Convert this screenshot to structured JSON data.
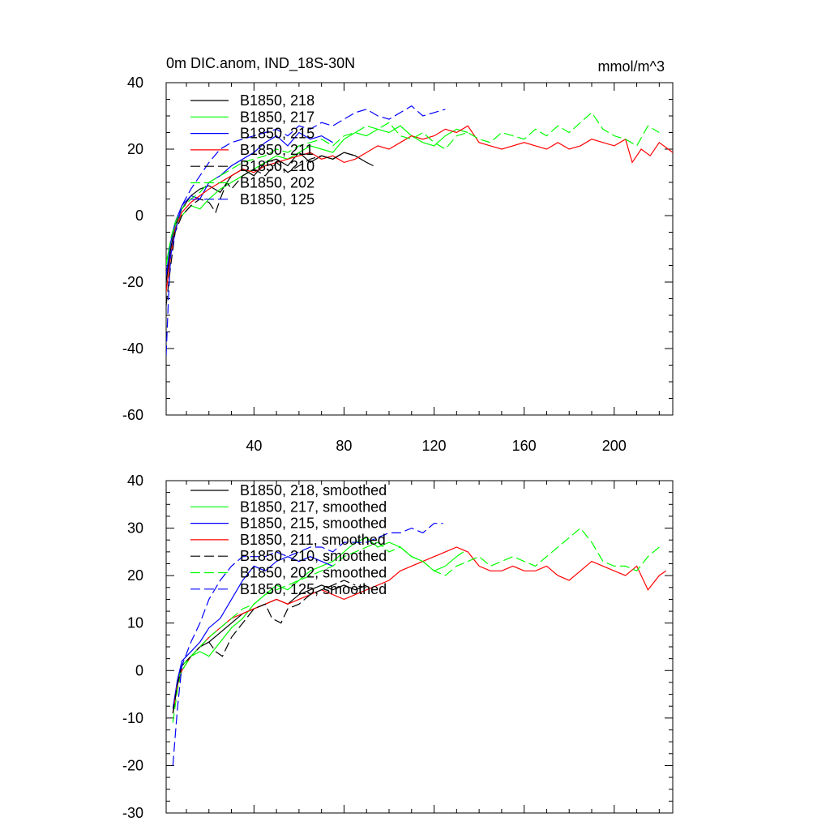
{
  "chart_data": [
    {
      "type": "line",
      "title": "0m DIC.anom, IND_18S-30N",
      "units": "mmol/m^3",
      "xlabel": "",
      "ylabel": "",
      "xlim": [
        1,
        226
      ],
      "ylim": [
        -60,
        40
      ],
      "xticks": [
        40,
        80,
        120,
        160,
        200
      ],
      "xtick_labels": [
        "40",
        "80",
        "120",
        "160",
        "200"
      ],
      "yticks": [
        -60,
        -40,
        -20,
        0,
        20,
        40
      ],
      "ytick_labels": [
        "-60",
        "-40",
        "-20",
        "0",
        "20",
        "40"
      ],
      "legend_position": "top-left",
      "series": [
        {
          "name": "B1850, 218",
          "color": "#000000",
          "dash": "solid",
          "x": [
            1,
            3,
            5,
            8,
            12,
            16,
            20,
            25,
            30,
            35,
            40,
            45,
            50,
            55,
            60,
            65,
            70,
            75,
            80,
            85,
            90,
            93
          ],
          "y": [
            -20,
            -10,
            -3,
            2,
            6,
            8,
            9,
            7,
            12,
            14,
            12,
            16,
            17,
            15,
            19,
            16,
            18,
            17,
            19,
            18,
            16,
            15
          ]
        },
        {
          "name": "B1850, 217",
          "color": "#00ff00",
          "dash": "solid",
          "x": [
            1,
            3,
            5,
            8,
            12,
            16,
            20,
            25,
            30,
            35,
            40,
            45,
            50,
            55,
            60,
            65,
            70,
            75,
            80,
            85,
            90,
            95,
            100,
            105,
            110,
            115,
            120,
            125,
            130,
            135
          ],
          "y": [
            -14,
            -8,
            -3,
            0,
            3,
            2,
            5,
            8,
            10,
            12,
            14,
            16,
            18,
            17,
            19,
            21,
            20,
            19,
            23,
            25,
            24,
            26,
            25,
            27,
            24,
            22,
            21,
            24,
            26,
            25
          ]
        },
        {
          "name": "B1850, 215",
          "color": "#0000ff",
          "dash": "solid",
          "x": [
            1,
            3,
            5,
            8,
            12,
            16,
            20,
            25,
            30,
            35,
            40,
            45,
            50,
            55,
            60,
            65,
            70,
            75
          ],
          "y": [
            -18,
            -8,
            -2,
            3,
            6,
            5,
            10,
            12,
            15,
            17,
            19,
            22,
            24,
            21,
            25,
            23,
            24,
            22
          ]
        },
        {
          "name": "B1850, 211",
          "color": "#ff0000",
          "dash": "solid",
          "x": [
            1,
            3,
            5,
            8,
            12,
            16,
            20,
            25,
            30,
            35,
            40,
            45,
            50,
            55,
            60,
            65,
            70,
            75,
            80,
            85,
            90,
            95,
            100,
            105,
            110,
            115,
            120,
            125,
            130,
            135,
            140,
            145,
            150,
            155,
            160,
            165,
            170,
            175,
            180,
            185,
            190,
            195,
            200,
            205,
            208,
            212,
            216,
            220,
            224,
            226
          ],
          "y": [
            -23,
            -12,
            -4,
            1,
            4,
            6,
            8,
            10,
            12,
            14,
            13,
            15,
            16,
            17,
            18,
            19,
            17,
            18,
            16,
            17,
            19,
            21,
            20,
            22,
            24,
            23,
            24,
            26,
            25,
            27,
            22,
            21,
            20,
            21,
            22,
            21,
            20,
            22,
            20,
            21,
            23,
            22,
            21,
            23,
            16,
            20,
            18,
            22,
            20,
            19
          ]
        },
        {
          "name": "B1850, 210",
          "color": "#000000",
          "dash": "dashed",
          "x": [
            1,
            3,
            5,
            8,
            12,
            16,
            20,
            23,
            25,
            28,
            30,
            35,
            40,
            45,
            50,
            55,
            60,
            65,
            70,
            75,
            80,
            85
          ],
          "y": [
            -27,
            -15,
            -5,
            0,
            3,
            5,
            4,
            1,
            5,
            10,
            8,
            12,
            14,
            12,
            16,
            13,
            15,
            17,
            18,
            17,
            19,
            18
          ]
        },
        {
          "name": "B1850, 202",
          "color": "#00ff00",
          "dash": "dashed",
          "x": [
            1,
            3,
            5,
            8,
            12,
            16,
            20,
            25,
            30,
            35,
            40,
            45,
            50,
            55,
            60,
            65,
            70,
            75,
            80,
            85,
            90,
            95,
            100,
            105,
            110,
            115,
            120,
            125,
            130,
            135,
            140,
            145,
            150,
            155,
            160,
            165,
            170,
            175,
            180,
            185,
            190,
            195,
            200,
            205,
            210,
            215,
            220
          ],
          "y": [
            -15,
            -7,
            -2,
            2,
            5,
            7,
            10,
            12,
            14,
            16,
            17,
            18,
            20,
            19,
            21,
            22,
            23,
            21,
            24,
            25,
            27,
            26,
            28,
            24,
            23,
            25,
            22,
            20,
            24,
            25,
            23,
            22,
            25,
            24,
            23,
            26,
            24,
            27,
            25,
            28,
            31,
            26,
            24,
            23,
            21,
            27,
            25
          ]
        },
        {
          "name": "B1850, 125",
          "color": "#0000ff",
          "dash": "dashed",
          "x": [
            1,
            2,
            3,
            5,
            8,
            12,
            16,
            20,
            25,
            30,
            35,
            40,
            45,
            50,
            55,
            60,
            65,
            70,
            75,
            80,
            85,
            90,
            95,
            100,
            105,
            110,
            115,
            120,
            125
          ],
          "y": [
            -42,
            -25,
            -12,
            -5,
            3,
            8,
            12,
            16,
            20,
            22,
            23,
            24,
            25,
            26,
            24,
            27,
            26,
            28,
            27,
            29,
            31,
            32,
            30,
            29,
            31,
            33,
            30,
            31,
            32
          ]
        }
      ]
    },
    {
      "type": "line",
      "title": "",
      "xlabel": "",
      "ylabel": "",
      "xlim": [
        1,
        226
      ],
      "ylim": [
        -30,
        40
      ],
      "xticks": [
        40,
        80,
        120,
        160,
        200
      ],
      "xtick_labels": [],
      "yticks": [
        -30,
        -20,
        -10,
        0,
        10,
        20,
        30,
        40
      ],
      "ytick_labels": [
        "-30",
        "-20",
        "-10",
        "0",
        "10",
        "20",
        "30",
        "40"
      ],
      "legend_position": "top-left",
      "series": [
        {
          "name": "B1850, 218, smoothed",
          "color": "#000000",
          "dash": "solid",
          "x": [
            4,
            6,
            8,
            12,
            16,
            20,
            25,
            30,
            35,
            40,
            45,
            50,
            55,
            60,
            65,
            70,
            75,
            80,
            85,
            90
          ],
          "y": [
            -9,
            -2,
            1,
            3,
            5,
            6,
            8,
            10,
            12,
            13,
            14,
            15,
            14,
            16,
            17,
            18,
            17,
            18,
            17,
            18
          ]
        },
        {
          "name": "B1850, 217, smoothed",
          "color": "#00ff00",
          "dash": "solid",
          "x": [
            4,
            6,
            8,
            12,
            16,
            20,
            25,
            30,
            35,
            40,
            45,
            50,
            55,
            60,
            65,
            70,
            75,
            80,
            85,
            90,
            95,
            100,
            105,
            110,
            115,
            120,
            125,
            130,
            133
          ],
          "y": [
            -9,
            -3,
            1,
            3,
            4,
            3,
            6,
            9,
            11,
            14,
            16,
            18,
            17,
            19,
            21,
            22,
            23,
            25,
            27,
            28,
            26,
            27,
            26,
            24,
            23,
            21,
            22,
            24,
            25
          ]
        },
        {
          "name": "B1850, 215, smoothed",
          "color": "#0000ff",
          "dash": "solid",
          "x": [
            4,
            6,
            8,
            12,
            16,
            20,
            25,
            30,
            35,
            40,
            45,
            50,
            55,
            60,
            65,
            70,
            75
          ],
          "y": [
            -8,
            -2,
            2,
            4,
            6,
            9,
            11,
            15,
            19,
            22,
            21,
            23,
            24,
            23,
            24,
            23,
            22
          ]
        },
        {
          "name": "B1850, 211, smoothed",
          "color": "#ff0000",
          "dash": "solid",
          "x": [
            4,
            6,
            8,
            12,
            16,
            20,
            25,
            30,
            35,
            40,
            45,
            50,
            55,
            60,
            65,
            70,
            75,
            80,
            85,
            90,
            95,
            100,
            105,
            110,
            115,
            120,
            125,
            130,
            135,
            140,
            145,
            150,
            155,
            160,
            165,
            170,
            175,
            180,
            185,
            190,
            195,
            200,
            205,
            210,
            215,
            220,
            223
          ],
          "y": [
            -9,
            -3,
            0,
            3,
            5,
            7,
            9,
            11,
            12,
            13,
            14,
            15,
            14,
            15,
            16,
            17,
            16,
            15,
            16,
            17,
            18,
            19,
            21,
            22,
            23,
            24,
            25,
            26,
            25,
            22,
            21,
            21,
            22,
            21,
            21,
            22,
            20,
            19,
            21,
            23,
            22,
            21,
            20,
            22,
            17,
            20,
            21
          ]
        },
        {
          "name": "B1850, 210, smoothed",
          "color": "#000000",
          "dash": "dashed",
          "x": [
            4,
            6,
            8,
            12,
            16,
            20,
            23,
            26,
            30,
            35,
            40,
            45,
            48,
            52,
            55,
            60,
            65,
            70,
            75,
            80,
            85
          ],
          "y": [
            -9,
            -3,
            1,
            3,
            5,
            6,
            4,
            3,
            7,
            10,
            13,
            14,
            11,
            10,
            13,
            14,
            16,
            17,
            18,
            19,
            18
          ]
        },
        {
          "name": "B1850, 202, smoothed",
          "color": "#00ff00",
          "dash": "dashed",
          "x": [
            4,
            6,
            8,
            12,
            16,
            20,
            25,
            30,
            35,
            40,
            45,
            50,
            55,
            60,
            65,
            70,
            75,
            80,
            85,
            90,
            95,
            100,
            105,
            110,
            115,
            120,
            125,
            130,
            135,
            140,
            145,
            150,
            155,
            160,
            165,
            170,
            175,
            180,
            185,
            190,
            195,
            200,
            205,
            210,
            215,
            220
          ],
          "y": [
            -11,
            -4,
            0,
            3,
            5,
            7,
            9,
            11,
            13,
            14,
            16,
            17,
            18,
            19,
            20,
            21,
            22,
            24,
            25,
            26,
            27,
            25,
            26,
            24,
            23,
            21,
            20,
            22,
            23,
            24,
            22,
            23,
            24,
            23,
            22,
            24,
            26,
            28,
            30,
            27,
            23,
            22,
            22,
            21,
            24,
            26
          ]
        },
        {
          "name": "B1850, 125, smoothed",
          "color": "#0000ff",
          "dash": "dashed",
          "x": [
            4,
            6,
            8,
            12,
            16,
            20,
            25,
            30,
            35,
            40,
            45,
            50,
            55,
            60,
            65,
            70,
            75,
            80,
            85,
            90,
            95,
            100,
            105,
            110,
            115,
            120,
            124
          ],
          "y": [
            -20,
            -8,
            1,
            6,
            10,
            15,
            19,
            22,
            24,
            24,
            24,
            25,
            24,
            25,
            26,
            26,
            25,
            27,
            27,
            27,
            28,
            29,
            29,
            30,
            29,
            31,
            31
          ]
        }
      ]
    }
  ]
}
